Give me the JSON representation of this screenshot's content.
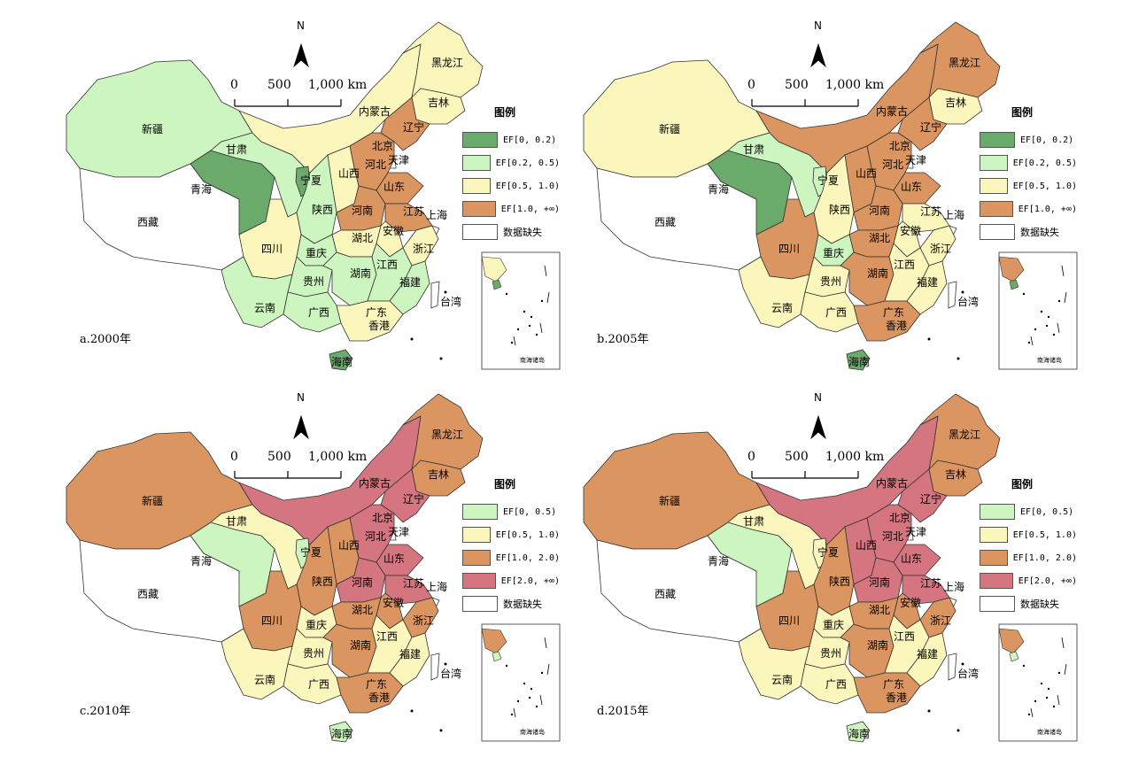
{
  "colors": {
    "dark_green": "#6aaa6a",
    "light_green": "#cdf5c0",
    "light_yellow": "#fbf6bc",
    "orange": "#db9560",
    "pink": "#d57580",
    "white": "#ffffff"
  },
  "map_labels": {
    "north": "N",
    "scale_0": "0",
    "scale_500": "500",
    "scale_1000": "1,000 km",
    "legend_title": "图例",
    "inset_title": "南海诸岛"
  },
  "provinces": {
    "xinjiang": "新疆",
    "xizang": "西藏",
    "qinghai": "青海",
    "gansu": "甘肃",
    "neimenggu": "内蒙古",
    "heilongjiang": "黑龙江",
    "jilin": "吉林",
    "liaoning": "辽宁",
    "beijing": "北京",
    "tianjin": "天津",
    "hebei": "河北",
    "shanxi": "山西",
    "shandong": "山东",
    "ningxia": "宁夏",
    "shaanxi": "陕西",
    "henan": "河南",
    "jiangsu": "江苏",
    "shanghai": "上海",
    "anhui": "安徽",
    "hubei": "湖北",
    "sichuan": "四川",
    "chongqing": "重庆",
    "zhejiang": "浙江",
    "guizhou": "贵州",
    "hunan": "湖南",
    "jiangxi": "江西",
    "fujian": "福建",
    "yunnan": "云南",
    "guangxi": "广西",
    "guangdong": "广东",
    "taiwan": "台湾",
    "xianggang": "香港",
    "hainan": "海南"
  },
  "panels": [
    {
      "caption": "a.2000年",
      "legend": [
        {
          "label": "EF[0, 0.2)",
          "color": "#6aaa6a"
        },
        {
          "label": "EF[0.2, 0.5)",
          "color": "#cdf5c0"
        },
        {
          "label": "EF[0.5, 1.0)",
          "color": "#fbf6bc"
        },
        {
          "label": "EF[1.0, +∞)",
          "color": "#db9560"
        },
        {
          "label": "数据缺失",
          "color": "#ffffff"
        }
      ],
      "fill": {
        "xinjiang": "#cdf5c0",
        "xizang": "#ffffff",
        "qinghai": "#6aaa6a",
        "gansu": "#cdf5c0",
        "neimenggu": "#fbf6bc",
        "heilongjiang": "#fbf6bc",
        "jilin": "#fbf6bc",
        "liaoning": "#db9560",
        "beijing": "#cdf5c0",
        "tianjin": "#ffffff",
        "hebei": "#db9560",
        "shanxi": "#fbf6bc",
        "shandong": "#db9560",
        "ningxia": "#6aaa6a",
        "shaanxi": "#cdf5c0",
        "henan": "#db9560",
        "jiangsu": "#db9560",
        "anhui": "#fbf6bc",
        "hubei": "#fbf6bc",
        "sichuan": "#fbf6bc",
        "chongqing": "#cdf5c0",
        "zhejiang": "#fbf6bc",
        "guizhou": "#cdf5c0",
        "hunan": "#cdf5c0",
        "jiangxi": "#cdf5c0",
        "fujian": "#cdf5c0",
        "yunnan": "#cdf5c0",
        "guangxi": "#cdf5c0",
        "guangdong": "#fbf6bc",
        "hainan": "#6aaa6a",
        "taiwan": "#ffffff"
      }
    },
    {
      "caption": "b.2005年",
      "legend": [
        {
          "label": "EF[0, 0.2)",
          "color": "#6aaa6a"
        },
        {
          "label": "EF[0.2, 0.5)",
          "color": "#cdf5c0"
        },
        {
          "label": "EF[0.5, 1.0)",
          "color": "#fbf6bc"
        },
        {
          "label": "EF[1.0, +∞)",
          "color": "#db9560"
        },
        {
          "label": "数据缺失",
          "color": "#ffffff"
        }
      ],
      "fill": {
        "xinjiang": "#fbf6bc",
        "xizang": "#ffffff",
        "qinghai": "#6aaa6a",
        "gansu": "#cdf5c0",
        "neimenggu": "#db9560",
        "heilongjiang": "#db9560",
        "jilin": "#fbf6bc",
        "liaoning": "#db9560",
        "beijing": "#fbf6bc",
        "tianjin": "#ffffff",
        "hebei": "#db9560",
        "shanxi": "#db9560",
        "shandong": "#db9560",
        "ningxia": "#cdf5c0",
        "shaanxi": "#fbf6bc",
        "henan": "#db9560",
        "jiangsu": "#fbf6bc",
        "anhui": "#fbf6bc",
        "hubei": "#db9560",
        "sichuan": "#db9560",
        "chongqing": "#cdf5c0",
        "zhejiang": "#fbf6bc",
        "guizhou": "#fbf6bc",
        "hunan": "#db9560",
        "jiangxi": "#fbf6bc",
        "fujian": "#fbf6bc",
        "yunnan": "#fbf6bc",
        "guangxi": "#fbf6bc",
        "guangdong": "#db9560",
        "hainan": "#6aaa6a",
        "taiwan": "#ffffff"
      }
    },
    {
      "caption": "c.2010年",
      "legend": [
        {
          "label": "EF[0, 0.5)",
          "color": "#cdf5c0"
        },
        {
          "label": "EF[0.5, 1.0)",
          "color": "#fbf6bc"
        },
        {
          "label": "EF[1.0, 2.0)",
          "color": "#db9560"
        },
        {
          "label": "EF[2.0, +∞)",
          "color": "#d57580"
        },
        {
          "label": "数据缺失",
          "color": "#ffffff"
        }
      ],
      "fill": {
        "xinjiang": "#db9560",
        "xizang": "#ffffff",
        "qinghai": "#cdf5c0",
        "gansu": "#fbf6bc",
        "neimenggu": "#d57580",
        "heilongjiang": "#db9560",
        "jilin": "#db9560",
        "liaoning": "#d57580",
        "beijing": "#cdf5c0",
        "tianjin": "#ffffff",
        "hebei": "#d57580",
        "shanxi": "#db9560",
        "shandong": "#d57580",
        "ningxia": "#cdf5c0",
        "shaanxi": "#db9560",
        "henan": "#d57580",
        "jiangsu": "#d57580",
        "anhui": "#db9560",
        "hubei": "#db9560",
        "sichuan": "#db9560",
        "chongqing": "#fbf6bc",
        "zhejiang": "#db9560",
        "guizhou": "#fbf6bc",
        "hunan": "#db9560",
        "jiangxi": "#fbf6bc",
        "fujian": "#fbf6bc",
        "yunnan": "#fbf6bc",
        "guangxi": "#fbf6bc",
        "guangdong": "#db9560",
        "hainan": "#cdf5c0",
        "taiwan": "#ffffff"
      }
    },
    {
      "caption": "d.2015年",
      "legend": [
        {
          "label": "EF[0, 0.5)",
          "color": "#cdf5c0"
        },
        {
          "label": "EF[0.5, 1.0)",
          "color": "#fbf6bc"
        },
        {
          "label": "EF[1.0, 2.0)",
          "color": "#db9560"
        },
        {
          "label": "EF[2.0, +∞)",
          "color": "#d57580"
        },
        {
          "label": "数据缺失",
          "color": "#ffffff"
        }
      ],
      "fill": {
        "xinjiang": "#db9560",
        "xizang": "#ffffff",
        "qinghai": "#cdf5c0",
        "gansu": "#fbf6bc",
        "neimenggu": "#d57580",
        "heilongjiang": "#db9560",
        "jilin": "#db9560",
        "liaoning": "#d57580",
        "beijing": "#fbf6bc",
        "tianjin": "#ffffff",
        "hebei": "#d57580",
        "shanxi": "#d57580",
        "shandong": "#d57580",
        "ningxia": "#fbf6bc",
        "shaanxi": "#db9560",
        "henan": "#d57580",
        "jiangsu": "#d57580",
        "anhui": "#db9560",
        "hubei": "#db9560",
        "sichuan": "#db9560",
        "chongqing": "#fbf6bc",
        "zhejiang": "#db9560",
        "guizhou": "#fbf6bc",
        "hunan": "#db9560",
        "jiangxi": "#fbf6bc",
        "fujian": "#fbf6bc",
        "yunnan": "#fbf6bc",
        "guangxi": "#fbf6bc",
        "guangdong": "#db9560",
        "hainan": "#cdf5c0",
        "taiwan": "#ffffff"
      }
    }
  ]
}
